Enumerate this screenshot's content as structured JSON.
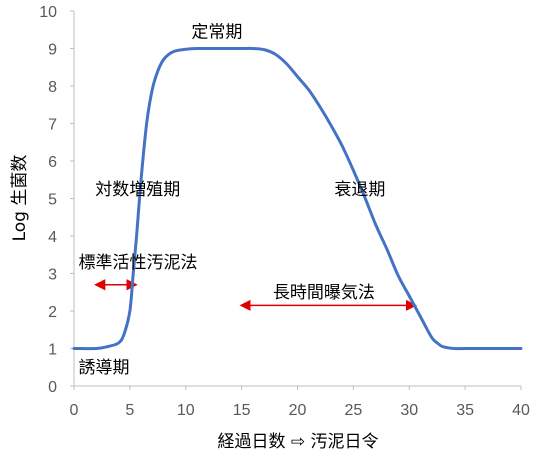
{
  "chart_data": {
    "type": "line",
    "xlabel": "経過日数 ⇨ 汚泥日令",
    "ylabel": "Log 生菌数",
    "xlim": [
      0,
      40
    ],
    "ylim": [
      0,
      10
    ],
    "x_ticks": [
      0,
      5,
      10,
      15,
      20,
      25,
      30,
      35,
      40
    ],
    "y_ticks": [
      0,
      1,
      2,
      3,
      4,
      5,
      6,
      7,
      8,
      9,
      10
    ],
    "grid": false,
    "series_color": "#4472C4",
    "arrow_color": "#E00000",
    "series": [
      {
        "x": [
          0,
          2,
          3,
          4,
          4.5,
          5,
          5.3,
          5.6,
          6,
          6.5,
          7,
          7.5,
          8,
          8.5,
          9,
          10,
          11,
          13,
          15,
          16,
          17,
          18,
          19,
          20,
          21,
          22,
          23,
          24,
          25,
          26,
          27,
          28,
          29,
          30,
          31,
          32,
          32.5,
          33,
          34,
          35,
          36,
          38,
          40
        ],
        "y": [
          1,
          1,
          1.05,
          1.15,
          1.4,
          2.0,
          3.0,
          4.0,
          5.5,
          7.0,
          7.9,
          8.4,
          8.7,
          8.85,
          8.93,
          8.98,
          9,
          9,
          9,
          9,
          8.97,
          8.85,
          8.6,
          8.25,
          7.9,
          7.45,
          6.95,
          6.4,
          5.75,
          5.05,
          4.3,
          3.65,
          2.95,
          2.4,
          1.85,
          1.3,
          1.15,
          1.05,
          1.0,
          1,
          1,
          1,
          1
        ]
      }
    ],
    "annotations": [
      {
        "id": "lag",
        "text": "誘導期",
        "x": 0.4,
        "y": 0.35
      },
      {
        "id": "log-phase",
        "text": "対数増殖期",
        "x": 1.9,
        "y": 5.1
      },
      {
        "id": "stationary",
        "text": "定常期",
        "x": 10.5,
        "y": 9.3
      },
      {
        "id": "decline",
        "text": "衰退期",
        "x": 23.3,
        "y": 5.1
      },
      {
        "id": "std-activated-sludge",
        "text": "標準活性汚泥法",
        "x": 0.4,
        "y": 3.15
      },
      {
        "id": "extended-aeration",
        "text": "長時間曝気法",
        "x": 17.8,
        "y": 2.35
      }
    ],
    "range_arrows": [
      {
        "id": "std-activated-sludge-range",
        "x_start": 2,
        "x_end": 5.5,
        "y": 2.7
      },
      {
        "id": "extended-aeration-range",
        "x_start": 15,
        "x_end": 30.5,
        "y": 2.15
      }
    ]
  }
}
